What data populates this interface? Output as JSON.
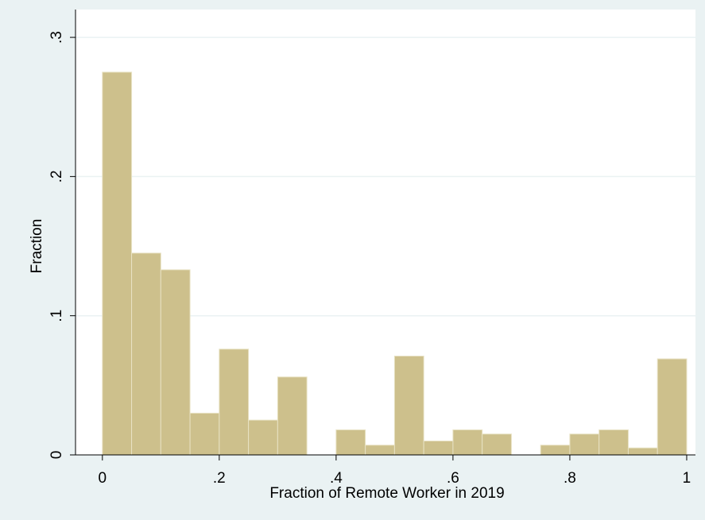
{
  "chart_data": {
    "type": "histogram",
    "xlabel": "Fraction of Remote Worker in 2019",
    "ylabel": "Fraction",
    "bins": [
      0,
      0.05,
      0.1,
      0.15,
      0.2,
      0.25,
      0.3,
      0.35,
      0.4,
      0.45,
      0.5,
      0.55,
      0.6,
      0.65,
      0.7,
      0.75,
      0.8,
      0.85,
      0.9,
      0.95,
      1
    ],
    "values": [
      0.275,
      0.145,
      0.133,
      0.03,
      0.076,
      0.025,
      0.056,
      0,
      0.018,
      0.007,
      0.071,
      0.01,
      0.018,
      0.015,
      0,
      0.007,
      0.015,
      0.018,
      0.005,
      0.069
    ],
    "color": "#cdc08c",
    "xlim": [
      -0.046,
      1.015
    ],
    "ylim": [
      0,
      0.32
    ],
    "xticks": [
      0,
      {
        "value": 0.2,
        "label": ".2"
      },
      {
        "value": 0.4,
        "label": ".4"
      },
      {
        "value": 0.6,
        "label": ".6"
      },
      {
        "value": 0.8,
        "label": ".8"
      },
      1
    ],
    "yticks": [
      0,
      {
        "value": 0.1,
        "label": ".1"
      },
      {
        "value": 0.2,
        "label": ".2"
      },
      {
        "value": 0.3,
        "label": ".3"
      }
    ],
    "grid": true
  }
}
